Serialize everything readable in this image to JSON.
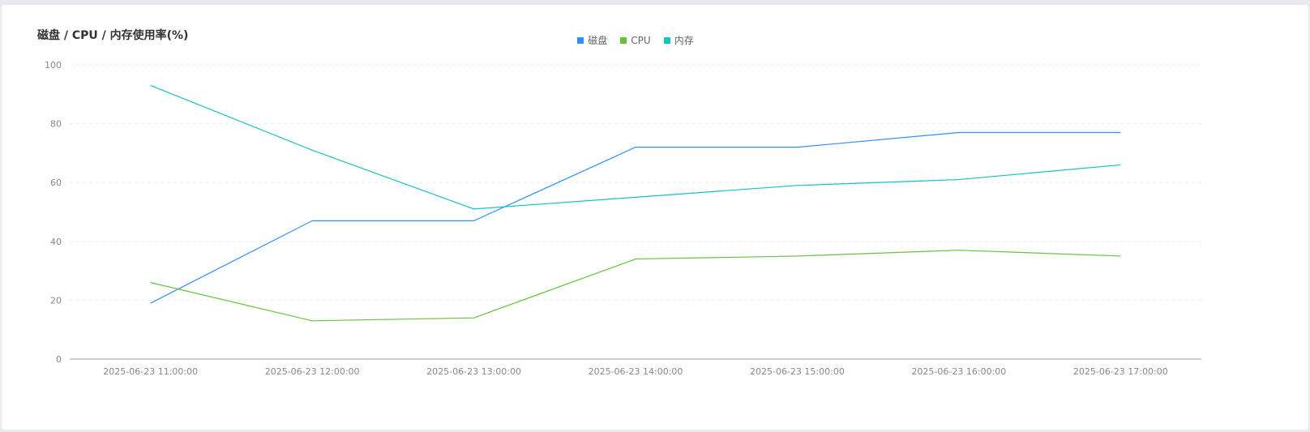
{
  "chart_data": {
    "type": "line",
    "title": "磁盘 / CPU / 内存使用率(%)",
    "x": [
      "2025-06-23 11:00:00",
      "2025-06-23 12:00:00",
      "2025-06-23 13:00:00",
      "2025-06-23 14:00:00",
      "2025-06-23 15:00:00",
      "2025-06-23 16:00:00",
      "2025-06-23 17:00:00"
    ],
    "ylim": [
      0,
      100
    ],
    "yticks": [
      0,
      20,
      40,
      60,
      80,
      100
    ],
    "grid": true,
    "legend_position": "top-center",
    "series": [
      {
        "name": "磁盘",
        "color": "#2f8fff",
        "values": [
          19,
          47,
          47,
          72,
          72,
          77,
          77
        ]
      },
      {
        "name": "CPU",
        "color": "#67c23a",
        "values": [
          26,
          13,
          14,
          34,
          35,
          37,
          35
        ]
      },
      {
        "name": "内存",
        "color": "#13c2c2",
        "values": [
          93,
          71,
          51,
          55,
          59,
          61,
          66
        ]
      }
    ]
  }
}
